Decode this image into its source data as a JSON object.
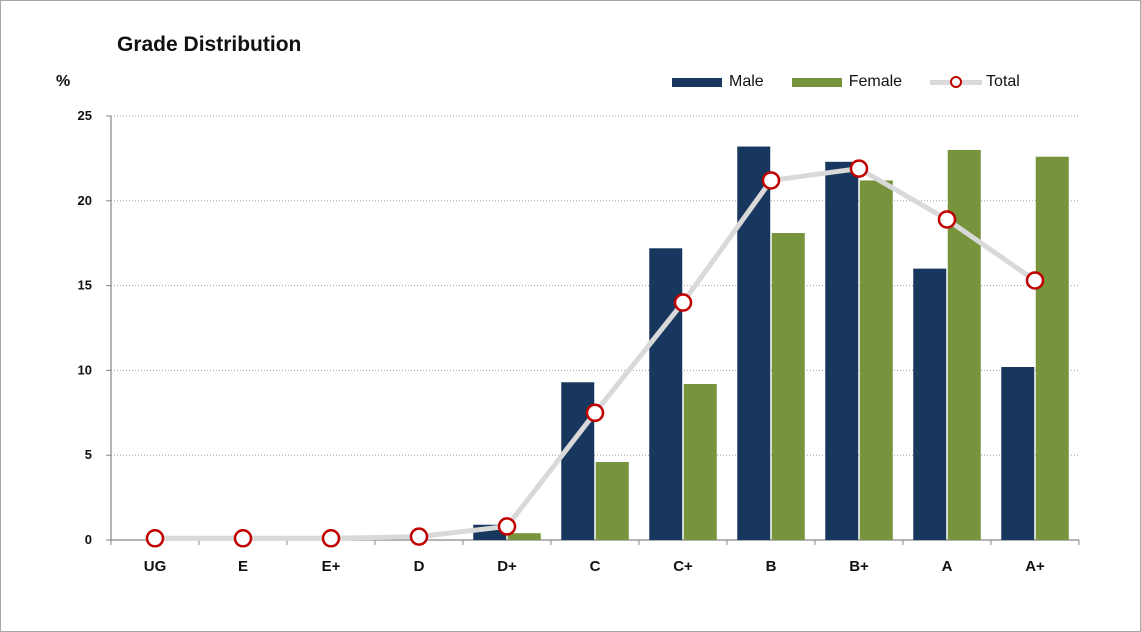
{
  "chart_data": {
    "type": "bar",
    "title": "Grade Distribution",
    "ylabel": "%",
    "xlabel": "",
    "categories": [
      "UG",
      "E",
      "E+",
      "D",
      "D+",
      "C",
      "C+",
      "B",
      "B+",
      "A",
      "A+"
    ],
    "ylim": [
      0,
      25
    ],
    "yticks": [
      0,
      5,
      10,
      15,
      20,
      25
    ],
    "grid": true,
    "legend_position": "top-right",
    "series": [
      {
        "name": "Male",
        "type": "bar",
        "color": "#17375e",
        "values": [
          0,
          0,
          0,
          0,
          0.9,
          9.3,
          17.2,
          23.2,
          22.3,
          16.0,
          10.2
        ]
      },
      {
        "name": "Female",
        "type": "bar",
        "color": "#77933c",
        "values": [
          0,
          0,
          0,
          0,
          0.4,
          4.6,
          9.2,
          18.1,
          21.2,
          23.0,
          22.6
        ]
      },
      {
        "name": "Total",
        "type": "line",
        "line_color": "#d9d9d9",
        "marker_color": "#c00000",
        "values": [
          0.1,
          0.1,
          0.1,
          0.2,
          0.8,
          7.5,
          14.0,
          21.2,
          21.9,
          18.9,
          15.3
        ]
      }
    ]
  }
}
